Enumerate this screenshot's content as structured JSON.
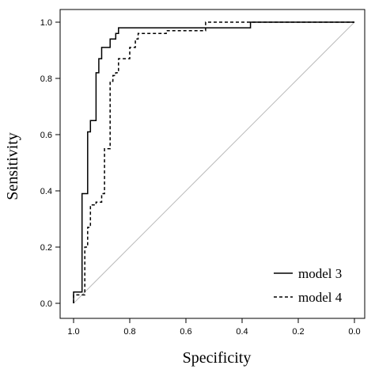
{
  "chart_data": {
    "type": "line",
    "title": "",
    "xlabel": "Specificity",
    "ylabel": "Sensitivity",
    "xlim": [
      1.0,
      0.0
    ],
    "ylim": [
      0.0,
      1.0
    ],
    "x_reversed": true,
    "x_ticks": [
      "1.0",
      "0.8",
      "0.6",
      "0.4",
      "0.2",
      "0.0"
    ],
    "x_tick_values": [
      1.0,
      0.8,
      0.6,
      0.4,
      0.2,
      0.0
    ],
    "y_ticks": [
      "0.0",
      "0.2",
      "0.4",
      "0.6",
      "0.8",
      "1.0"
    ],
    "y_tick_values": [
      0.0,
      0.2,
      0.4,
      0.6,
      0.8,
      1.0
    ],
    "grid": false,
    "legend_position": "bottom-right",
    "reference_line": {
      "from": [
        1.0,
        0.0
      ],
      "to": [
        0.0,
        1.0
      ],
      "color": "#bbbbbb"
    },
    "series": [
      {
        "name": "model 3",
        "style": "solid",
        "color": "#000000",
        "x": [
          1.0,
          1.0,
          0.99,
          0.99,
          0.97,
          0.97,
          0.95,
          0.95,
          0.94,
          0.94,
          0.92,
          0.92,
          0.91,
          0.91,
          0.9,
          0.9,
          0.89,
          0.89,
          0.87,
          0.87,
          0.85,
          0.85,
          0.84,
          0.84,
          0.82,
          0.82,
          0.37,
          0.37,
          0.0
        ],
        "y": [
          0.0,
          0.04,
          0.04,
          0.04,
          0.04,
          0.39,
          0.39,
          0.61,
          0.61,
          0.65,
          0.65,
          0.82,
          0.82,
          0.87,
          0.87,
          0.91,
          0.91,
          0.91,
          0.91,
          0.94,
          0.94,
          0.96,
          0.96,
          0.98,
          0.98,
          0.98,
          0.98,
          1.0,
          1.0
        ]
      },
      {
        "name": "model 4",
        "style": "dashed",
        "color": "#000000",
        "x": [
          1.0,
          1.0,
          0.96,
          0.96,
          0.95,
          0.95,
          0.94,
          0.94,
          0.92,
          0.92,
          0.9,
          0.9,
          0.89,
          0.89,
          0.87,
          0.87,
          0.86,
          0.86,
          0.85,
          0.85,
          0.84,
          0.84,
          0.82,
          0.82,
          0.8,
          0.8,
          0.78,
          0.78,
          0.77,
          0.77,
          0.67,
          0.67,
          0.53,
          0.53,
          0.35,
          0.35,
          0.0
        ],
        "y": [
          0.0,
          0.03,
          0.03,
          0.2,
          0.2,
          0.27,
          0.27,
          0.35,
          0.35,
          0.36,
          0.36,
          0.39,
          0.39,
          0.55,
          0.55,
          0.79,
          0.79,
          0.81,
          0.81,
          0.82,
          0.82,
          0.87,
          0.87,
          0.87,
          0.87,
          0.91,
          0.91,
          0.94,
          0.94,
          0.96,
          0.96,
          0.97,
          0.97,
          1.0,
          1.0,
          1.0,
          1.0
        ]
      }
    ]
  }
}
